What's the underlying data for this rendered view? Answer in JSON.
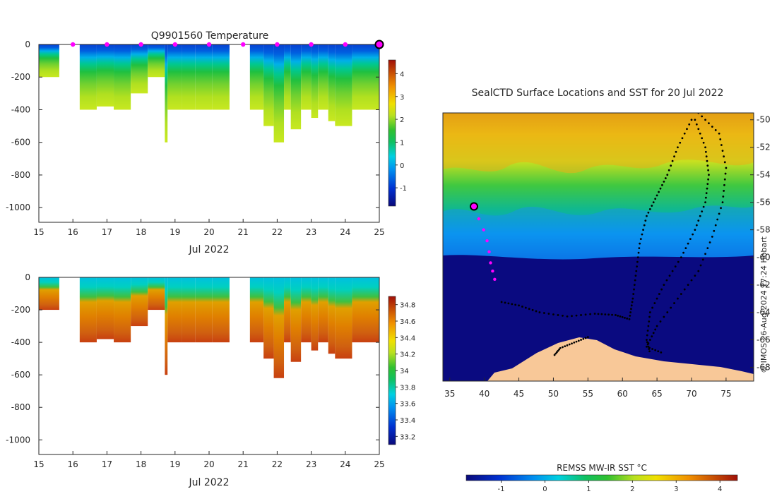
{
  "chart_data": [
    {
      "type": "heatmap",
      "title": "Q9901560  Temperature",
      "xlabel": "Jul 2022",
      "x_ticks": [
        "15",
        "16",
        "17",
        "18",
        "19",
        "20",
        "21",
        "22",
        "23",
        "24",
        "25"
      ],
      "xlim": [
        15,
        25
      ],
      "ylim": [
        -1090,
        0
      ],
      "y_ticks": [
        "0",
        "-200",
        "-400",
        "-600",
        "-800",
        "-1000"
      ],
      "colorbar": {
        "min": -1.8,
        "max": 4.6,
        "ticks": [
          "-1",
          "0",
          "1",
          "2",
          "3",
          "4"
        ]
      },
      "profile_surface_marks": [
        16,
        17,
        18,
        19,
        20,
        21,
        22,
        23,
        24
      ],
      "latest_profile_day": 25,
      "profiles": [
        {
          "x0": 15.0,
          "x1": 15.6,
          "depth": 200
        },
        {
          "x0": 16.2,
          "x1": 16.7,
          "depth": 400
        },
        {
          "x0": 16.7,
          "x1": 17.2,
          "depth": 380
        },
        {
          "x0": 17.2,
          "x1": 17.7,
          "depth": 400
        },
        {
          "x0": 17.7,
          "x1": 18.2,
          "depth": 300
        },
        {
          "x0": 18.2,
          "x1": 18.7,
          "depth": 200
        },
        {
          "x0": 18.7,
          "x1": 18.78,
          "depth": 600
        },
        {
          "x0": 18.78,
          "x1": 19.2,
          "depth": 400
        },
        {
          "x0": 19.2,
          "x1": 19.6,
          "depth": 400
        },
        {
          "x0": 19.6,
          "x1": 20.1,
          "depth": 400
        },
        {
          "x0": 20.1,
          "x1": 20.6,
          "depth": 400
        },
        {
          "x0": 21.2,
          "x1": 21.6,
          "depth": 400
        },
        {
          "x0": 21.6,
          "x1": 21.9,
          "depth": 500
        },
        {
          "x0": 21.9,
          "x1": 22.2,
          "depth": 600
        },
        {
          "x0": 22.2,
          "x1": 22.4,
          "depth": 400
        },
        {
          "x0": 22.4,
          "x1": 22.7,
          "depth": 520
        },
        {
          "x0": 22.7,
          "x1": 23.0,
          "depth": 400
        },
        {
          "x0": 23.0,
          "x1": 23.2,
          "depth": 450
        },
        {
          "x0": 23.2,
          "x1": 23.5,
          "depth": 400
        },
        {
          "x0": 23.5,
          "x1": 23.7,
          "depth": 470
        },
        {
          "x0": 23.7,
          "x1": 24.2,
          "depth": 500
        },
        {
          "x0": 24.2,
          "x1": 25.0,
          "depth": 400
        }
      ]
    },
    {
      "type": "heatmap",
      "title": "",
      "xlabel": "Jul 2022",
      "x_ticks": [
        "15",
        "16",
        "17",
        "18",
        "19",
        "20",
        "21",
        "22",
        "23",
        "24",
        "25"
      ],
      "xlim": [
        15,
        25
      ],
      "ylim": [
        -1090,
        0
      ],
      "y_ticks": [
        "0",
        "-200",
        "-400",
        "-600",
        "-800",
        "-1000"
      ],
      "colorbar": {
        "min": 33.1,
        "max": 34.9,
        "ticks": [
          "33.2",
          "33.4",
          "33.6",
          "33.8",
          "34",
          "34.2",
          "34.4",
          "34.6",
          "34.8"
        ]
      },
      "profiles": [
        {
          "x0": 15.0,
          "x1": 15.6,
          "depth": 200
        },
        {
          "x0": 16.2,
          "x1": 16.7,
          "depth": 400
        },
        {
          "x0": 16.7,
          "x1": 17.2,
          "depth": 380
        },
        {
          "x0": 17.2,
          "x1": 17.7,
          "depth": 400
        },
        {
          "x0": 17.7,
          "x1": 18.2,
          "depth": 300
        },
        {
          "x0": 18.2,
          "x1": 18.7,
          "depth": 200
        },
        {
          "x0": 18.7,
          "x1": 18.78,
          "depth": 600
        },
        {
          "x0": 18.78,
          "x1": 19.2,
          "depth": 400
        },
        {
          "x0": 19.2,
          "x1": 19.6,
          "depth": 400
        },
        {
          "x0": 19.6,
          "x1": 20.1,
          "depth": 400
        },
        {
          "x0": 20.1,
          "x1": 20.6,
          "depth": 400
        },
        {
          "x0": 21.2,
          "x1": 21.6,
          "depth": 400
        },
        {
          "x0": 21.6,
          "x1": 21.9,
          "depth": 500
        },
        {
          "x0": 21.9,
          "x1": 22.2,
          "depth": 620
        },
        {
          "x0": 22.2,
          "x1": 22.4,
          "depth": 400
        },
        {
          "x0": 22.4,
          "x1": 22.7,
          "depth": 520
        },
        {
          "x0": 22.7,
          "x1": 23.0,
          "depth": 400
        },
        {
          "x0": 23.0,
          "x1": 23.2,
          "depth": 450
        },
        {
          "x0": 23.2,
          "x1": 23.5,
          "depth": 400
        },
        {
          "x0": 23.5,
          "x1": 23.7,
          "depth": 470
        },
        {
          "x0": 23.7,
          "x1": 24.2,
          "depth": 500
        },
        {
          "x0": 24.2,
          "x1": 25.0,
          "depth": 400
        }
      ]
    },
    {
      "type": "heatmap",
      "title": "SealCTD Surface Locations and SST for 20 Jul 2022",
      "x_ticks": [
        "35",
        "40",
        "45",
        "50",
        "55",
        "60",
        "65",
        "70",
        "75"
      ],
      "y_ticks": [
        "-50",
        "-52",
        "-54",
        "-56",
        "-58",
        "-60",
        "-62",
        "-64",
        "-66",
        "-68"
      ],
      "xlim": [
        34,
        79
      ],
      "ylim": [
        -69,
        -49.5
      ],
      "colorbar_label": "REMSS MW-IR SST °C",
      "colorbar": {
        "min": -1.8,
        "max": 4.4,
        "ticks": [
          "-1",
          "0",
          "1",
          "2",
          "3",
          "4"
        ]
      },
      "credit": "© IMOS 26-Aug-2024 17:24 Hobart",
      "current_position": [
        38.5,
        -56.3
      ],
      "recent_track": [
        [
          38.5,
          -56.3
        ],
        [
          39.2,
          -57.2
        ],
        [
          39.9,
          -58.0
        ],
        [
          40.4,
          -58.8
        ],
        [
          40.7,
          -59.6
        ],
        [
          40.9,
          -60.4
        ],
        [
          41.2,
          -61.0
        ],
        [
          41.5,
          -61.6
        ]
      ],
      "older_tracks": [
        [
          [
            70,
            -50
          ],
          [
            68,
            -52
          ],
          [
            66.5,
            -54
          ],
          [
            65,
            -55.5
          ],
          [
            63.5,
            -57
          ],
          [
            62.5,
            -59
          ],
          [
            62,
            -61
          ],
          [
            61.5,
            -63
          ],
          [
            61,
            -64.5
          ],
          [
            59,
            -64.2
          ],
          [
            56,
            -64.1
          ],
          [
            52,
            -64.3
          ],
          [
            48,
            -64.0
          ],
          [
            45,
            -63.5
          ],
          [
            42,
            -63.2
          ]
        ],
        [
          [
            70.5,
            -50
          ],
          [
            72,
            -52
          ],
          [
            72.5,
            -54
          ],
          [
            72,
            -56
          ],
          [
            70.5,
            -58
          ],
          [
            68.5,
            -60
          ],
          [
            66,
            -62
          ],
          [
            64,
            -64
          ],
          [
            63.5,
            -66
          ],
          [
            64,
            -67
          ]
        ],
        [
          [
            71,
            -49.5
          ],
          [
            74,
            -51
          ],
          [
            75,
            -53.5
          ],
          [
            74.5,
            -56
          ],
          [
            73,
            -58.5
          ],
          [
            71,
            -61
          ],
          [
            68,
            -63
          ],
          [
            65,
            -65
          ],
          [
            63.5,
            -66.5
          ],
          [
            66,
            -67
          ]
        ],
        [
          [
            55,
            -65.8
          ],
          [
            53,
            -66.2
          ],
          [
            51,
            -66.6
          ],
          [
            50,
            -67.2
          ]
        ]
      ]
    }
  ]
}
